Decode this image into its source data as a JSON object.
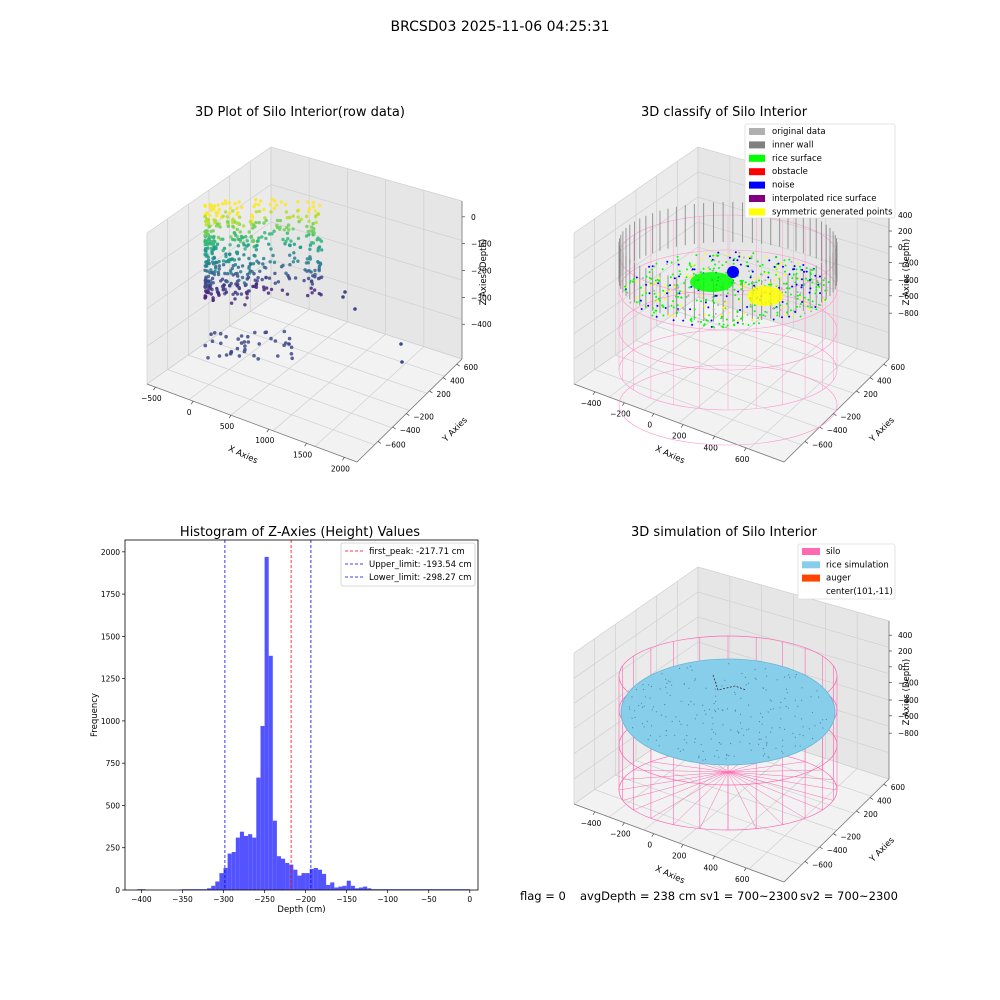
{
  "figure_title": "BRCSD03 2025-11-06 04:25:31",
  "status_line": {
    "flag": "flag = 0",
    "avg_depth": "avgDepth = 238 cm",
    "sv1": "sv1 = 700~2300",
    "sv2": "sv2 = 700~2300"
  },
  "chart_data": [
    {
      "type": "scatter",
      "projection": "3d",
      "title": "3D Plot of Silo Interior(row data)",
      "xlabel": "X Axies",
      "ylabel": "Y Axies",
      "zlabel": "Z Axies (Depth)",
      "x_ticks": [
        "−500",
        "0",
        "500",
        "1000",
        "1500",
        "2000"
      ],
      "y_ticks": [
        "600",
        "400",
        "200",
        "−200",
        "−400",
        "−600"
      ],
      "z_ticks": [
        "0",
        "−100",
        "−200",
        "−300",
        "−400"
      ],
      "colormap": "viridis",
      "grid": true
    },
    {
      "type": "scatter",
      "projection": "3d",
      "title": "3D classify of Silo Interior",
      "xlabel": "X Axies",
      "ylabel": "Y Axies",
      "zlabel": "Z Axies (Depth)",
      "x_ticks": [
        "−400",
        "−200",
        "0",
        "200",
        "400",
        "600"
      ],
      "y_ticks": [
        "600",
        "400",
        "200",
        "−200",
        "−400",
        "−600"
      ],
      "z_ticks": [
        "400",
        "200",
        "0",
        "−200",
        "−400",
        "−600",
        "−800"
      ],
      "legend": [
        {
          "label": "original data",
          "color": "#b0b0b0"
        },
        {
          "label": "inner wall",
          "color": "#808080"
        },
        {
          "label": "rice surface",
          "color": "#00ff00"
        },
        {
          "label": "obstacle",
          "color": "#ff0000"
        },
        {
          "label": "noise",
          "color": "#0000ff"
        },
        {
          "label": "interpolated rice surface",
          "color": "#800080"
        },
        {
          "label": "symmetric generated points",
          "color": "#ffff00"
        }
      ],
      "legend_position": "top-right",
      "grid": true
    },
    {
      "type": "bar",
      "title": "Histogram of Z-Axies (Height) Values",
      "xlabel": "Depth (cm)",
      "ylabel": "Frequency",
      "xlim": [
        -420,
        10
      ],
      "ylim": [
        0,
        2070
      ],
      "x_ticks": [
        -400,
        -350,
        -300,
        -250,
        -200,
        -150,
        -100,
        -50,
        0
      ],
      "y_ticks": [
        0,
        250,
        500,
        750,
        1000,
        1250,
        1500,
        1750,
        2000
      ],
      "bin_width": 5,
      "bins_start": [
        -405,
        -400,
        -355,
        -350,
        -345,
        -340,
        -335,
        -330,
        -325,
        -320,
        -315,
        -310,
        -305,
        -300,
        -295,
        -290,
        -285,
        -280,
        -275,
        -270,
        -265,
        -260,
        -255,
        -250,
        -245,
        -240,
        -235,
        -230,
        -225,
        -220,
        -215,
        -210,
        -205,
        -200,
        -195,
        -190,
        -185,
        -180,
        -175,
        -170,
        -165,
        -160,
        -155,
        -150,
        -145,
        -140,
        -135,
        -130,
        -125,
        -120,
        -115,
        -110,
        -105,
        -100,
        -95,
        -90,
        -85,
        -80,
        -75,
        -70,
        -65,
        -60,
        -55,
        -50,
        -45,
        -40,
        -35,
        -30,
        -25,
        -20,
        -15,
        -10,
        -5
      ],
      "counts": [
        5,
        5,
        3,
        5,
        5,
        5,
        5,
        5,
        5,
        10,
        25,
        50,
        100,
        130,
        215,
        225,
        310,
        345,
        320,
        330,
        310,
        665,
        970,
        1970,
        1385,
        410,
        200,
        185,
        160,
        150,
        120,
        85,
        100,
        100,
        125,
        130,
        120,
        95,
        30,
        45,
        15,
        20,
        25,
        55,
        25,
        10,
        15,
        20,
        10,
        5,
        5,
        5,
        5,
        5,
        5,
        5,
        5,
        5,
        5,
        5,
        5,
        5,
        5,
        5,
        5,
        5,
        5,
        5,
        5,
        5,
        5,
        5,
        5
      ],
      "bar_color": "#4040ff",
      "vlines": [
        {
          "label": "first_peak: -217.71 cm",
          "x": -217.71,
          "color": "#ff0000"
        },
        {
          "label": "Upper_limit: -193.54 cm",
          "x": -193.54,
          "color": "#0000ff"
        },
        {
          "label": "Lower_limit: -298.27 cm",
          "x": -298.27,
          "color": "#0000ff"
        }
      ],
      "legend_position": "top-right",
      "grid": false
    },
    {
      "type": "scatter",
      "projection": "3d",
      "title": "3D simulation of Silo Interior",
      "xlabel": "X Axies",
      "ylabel": "Y Axies",
      "zlabel": "Z Axies (Depth)",
      "x_ticks": [
        "−400",
        "−200",
        "0",
        "200",
        "400",
        "600"
      ],
      "y_ticks": [
        "600",
        "400",
        "200",
        "−200",
        "−400",
        "−600"
      ],
      "z_ticks": [
        "400",
        "200",
        "0",
        "−200",
        "−400",
        "−600",
        "−800"
      ],
      "legend": [
        {
          "label": "silo",
          "color": "#ff69b4"
        },
        {
          "label": "rice simulation",
          "color": "#87ceeb"
        },
        {
          "label": "auger",
          "color": "#ff4500"
        },
        {
          "label": "center(101,-11)",
          "color": ""
        }
      ],
      "legend_position": "top-right",
      "grid": true
    }
  ]
}
